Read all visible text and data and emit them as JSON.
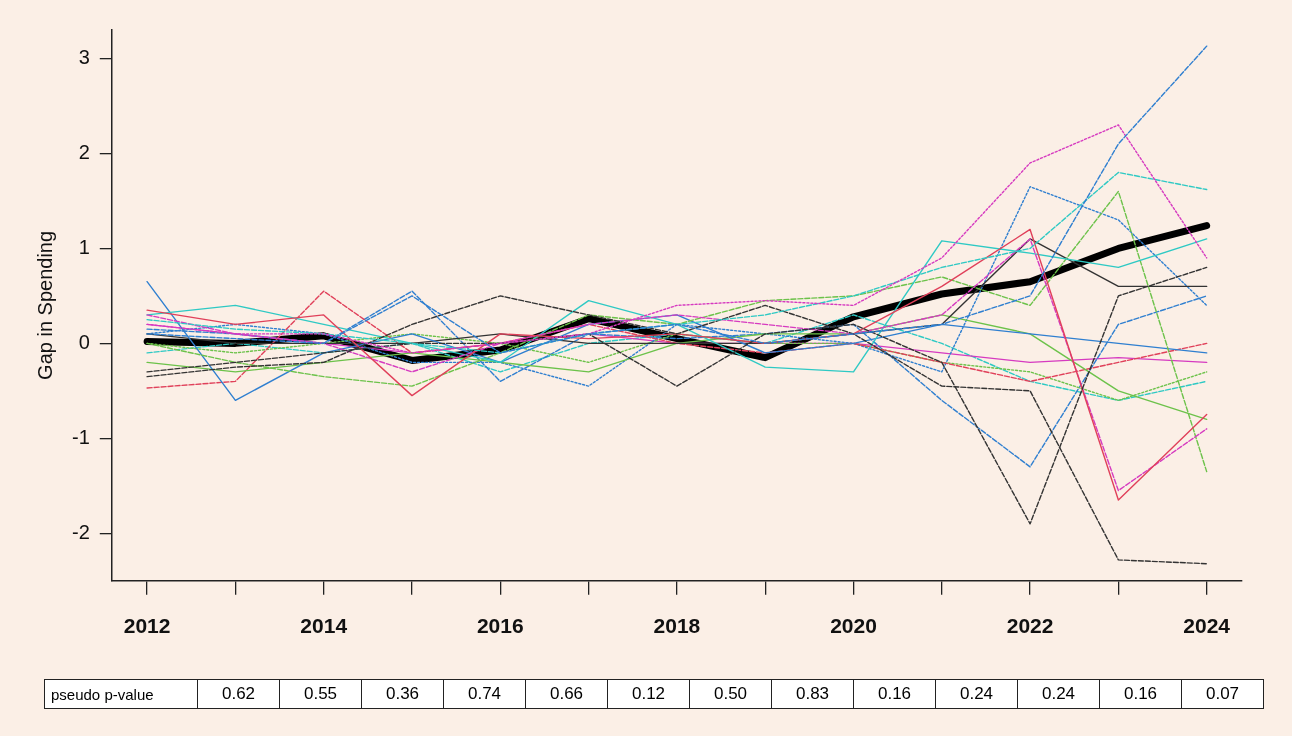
{
  "chart_data": {
    "type": "line",
    "ylabel": "Gap in Spending",
    "x": [
      2012,
      2013,
      2014,
      2015,
      2016,
      2017,
      2018,
      2019,
      2020,
      2021,
      2022,
      2023,
      2024
    ],
    "xlim": [
      2011.6,
      2024.4
    ],
    "xticks": [
      2012,
      {
        "value": 2013,
        "label": null
      },
      2014,
      {
        "value": 2015,
        "label": null
      },
      2016,
      {
        "value": 2017,
        "label": null
      },
      2018,
      {
        "value": 2019,
        "label": null
      },
      2020,
      {
        "value": 2021,
        "label": null
      },
      2022,
      {
        "value": 2023,
        "label": null
      },
      2024
    ],
    "ylim": [
      -2.5,
      3.3
    ],
    "yticks": [
      -2,
      -1,
      0,
      1,
      2,
      3
    ],
    "grid": false,
    "legend": false,
    "marker": "none",
    "series": [
      {
        "color": "#2f7fd0",
        "line_style": "dashed",
        "values": [
          0.1,
          0.05,
          0,
          0.5,
          -0.1,
          0.1,
          0.2,
          0,
          0.1,
          0.2,
          0.5,
          2.1,
          3.13
        ]
      },
      {
        "color": "#d63ac0",
        "line_style": "dotted",
        "values": [
          0.2,
          0.1,
          0.1,
          -0.1,
          0,
          0.1,
          0.4,
          0.45,
          0.4,
          0.9,
          1.9,
          2.3,
          0.9
        ]
      },
      {
        "color": "#2ec9c4",
        "line_style": "dashed",
        "values": [
          0.25,
          0.15,
          0.1,
          0,
          -0.1,
          0.1,
          0.2,
          0.3,
          0.5,
          0.8,
          1,
          1.8,
          1.62
        ]
      },
      {
        "color": "#333333",
        "line_style": "dashed",
        "values": [
          -0.3,
          -0.2,
          -0.1,
          0,
          0,
          0.1,
          -0.45,
          0.1,
          0.2,
          -0.2,
          -1.9,
          0.5,
          0.8
        ]
      },
      {
        "color": "#333333",
        "line_style": "dashed",
        "values": [
          -0.35,
          -0.25,
          -0.2,
          0.2,
          0.5,
          0.3,
          0.1,
          0.4,
          0.1,
          -0.45,
          -0.5,
          -2.28,
          -2.32
        ]
      },
      {
        "color": "#e0405a",
        "line_style": "solid",
        "values": [
          0.35,
          0.2,
          0.3,
          -0.55,
          0.1,
          0.05,
          0.1,
          0,
          0.1,
          0.6,
          1.2,
          -1.65,
          -0.75
        ]
      },
      {
        "color": "#d63ac0",
        "line_style": "dashed",
        "values": [
          0.3,
          0.1,
          0,
          -0.3,
          0,
          0.2,
          0.3,
          0.2,
          0.1,
          0.3,
          1.1,
          -1.55,
          -0.9
        ]
      },
      {
        "color": "#2ec9c4",
        "line_style": "solid",
        "values": [
          0.3,
          0.4,
          0.2,
          0,
          -0.2,
          0.45,
          0.2,
          -0.25,
          -0.3,
          1.08,
          0.95,
          0.8,
          1.1
        ]
      },
      {
        "color": "#6cc24a",
        "line_style": "dashed",
        "values": [
          0,
          -0.2,
          -0.35,
          -0.45,
          -0.1,
          0.3,
          0.2,
          0.45,
          0.5,
          0.7,
          0.4,
          1.6,
          -1.35
        ]
      },
      {
        "color": "#2f7fd0",
        "line_style": "solid",
        "values": [
          0.65,
          -0.6,
          -0.1,
          0.1,
          -0.2,
          0.2,
          0.3,
          -0.1,
          0,
          0.2,
          0.1,
          0,
          -0.1
        ]
      },
      {
        "color": "#333333",
        "line_style": "solid",
        "values": [
          0.1,
          0,
          0,
          0,
          0.1,
          0,
          0,
          0,
          0.1,
          0.2,
          1.1,
          0.6,
          0.6
        ]
      },
      {
        "color": "#6cc24a",
        "line_style": "solid",
        "values": [
          -0.2,
          -0.3,
          -0.2,
          -0.1,
          -0.2,
          -0.3,
          0,
          0.1,
          0.1,
          0.3,
          0.1,
          -0.5,
          -0.8
        ]
      },
      {
        "color": "#e0405a",
        "line_style": "dashed",
        "values": [
          -0.47,
          -0.4,
          0.55,
          -0.1,
          0,
          0.2,
          0,
          -0.1,
          0,
          -0.2,
          -0.4,
          -0.2,
          0
        ]
      },
      {
        "color": "#2f7fd0",
        "line_style": "dotted",
        "values": [
          0.1,
          0.2,
          0.1,
          -0.2,
          -0.2,
          -0.45,
          0.2,
          0.1,
          0,
          -0.3,
          1.65,
          1.3,
          0.4
        ]
      },
      {
        "color": "#6cc24a",
        "line_style": "dotted",
        "values": [
          0,
          -0.1,
          0,
          0.1,
          0,
          -0.2,
          0.1,
          0,
          0,
          -0.2,
          -0.3,
          -0.6,
          -0.3
        ]
      },
      {
        "color": "#2f7fd0",
        "line_style": "dashed",
        "values": [
          0.15,
          0.1,
          0,
          0.55,
          -0.4,
          0.1,
          0.05,
          0.1,
          0.2,
          -0.6,
          -1.3,
          0.2,
          0.5
        ]
      },
      {
        "color": "#d63ac0",
        "line_style": "solid",
        "values": [
          0.2,
          0.1,
          0,
          -0.1,
          0,
          0.1,
          0,
          0,
          0,
          -0.1,
          -0.2,
          -0.15,
          -0.2
        ]
      },
      {
        "color": "#2ec9c4",
        "line_style": "dashed",
        "values": [
          -0.1,
          0,
          -0.1,
          0,
          -0.3,
          0,
          0.1,
          0,
          0.3,
          0,
          -0.4,
          -0.6,
          -0.4
        ]
      },
      {
        "color": "#000000",
        "line_style": "solid",
        "values": [
          0.02,
          0,
          0.08,
          -0.18,
          -0.07,
          0.26,
          0.05,
          -0.15,
          0.28,
          0.52,
          0.65,
          1,
          1.24
        ]
      }
    ],
    "annotations": [
      "pseudo p-value",
      "0.62",
      "0.55",
      "0.36",
      "0.74",
      "0.66",
      "0.12",
      "0.50",
      "0.83",
      "0.16",
      "0.24",
      "0.24",
      "0.16",
      "0.07"
    ]
  }
}
